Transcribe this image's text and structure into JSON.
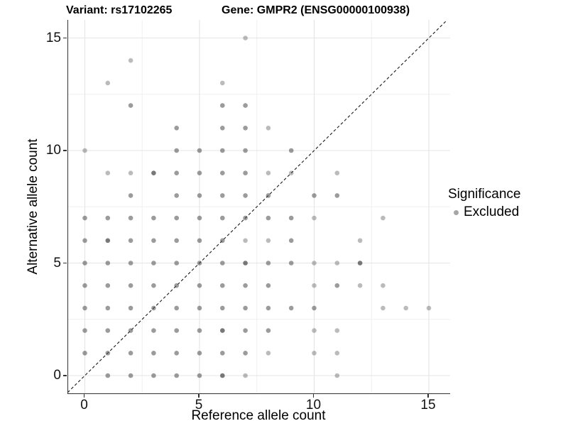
{
  "title_left": "Variant: rs17102265",
  "title_right": "Gene: GMPR2 (ENSG00000100938)",
  "legend": {
    "title": "Significance",
    "items": [
      {
        "label": "Excluded",
        "color": "#4d4d4d",
        "alpha": 0.5
      }
    ]
  },
  "x_axis": {
    "label": "Reference allele count",
    "tick_labels": [
      "0",
      "5",
      "10",
      "15"
    ],
    "tick_values": [
      0,
      5,
      10,
      15
    ],
    "minor_ticks": [
      2.5,
      7.5,
      12.5
    ],
    "range": [
      -0.75,
      15.93
    ]
  },
  "y_axis": {
    "label": "Alternative allele count",
    "tick_labels": [
      "0",
      "5",
      "10",
      "15"
    ],
    "tick_values": [
      0,
      5,
      10,
      15
    ],
    "minor_ticks": [
      2.5,
      7.5,
      12.5
    ],
    "range": [
      -0.77,
      15.8
    ]
  },
  "chart_data": {
    "type": "scatter",
    "title_left": "Variant: rs17102265",
    "title_right": "Gene: GMPR2 (ENSG00000100938)",
    "xlabel": "Reference allele count",
    "ylabel": "Alternative allele count",
    "xlim": [
      -0.75,
      15.93
    ],
    "ylim": [
      -0.77,
      15.8
    ],
    "grid": true,
    "legend_position": "right",
    "identity_line": {
      "style": "dashed",
      "color": "#1a1a1a",
      "from": [
        -0.75,
        -0.75
      ],
      "to": [
        15.8,
        15.8
      ]
    },
    "point_color": "#4d4d4d",
    "alpha_levels": [
      0.38,
      0.56,
      0.76
    ],
    "series": [
      {
        "name": "Excluded",
        "points": [
          [
            7,
            15,
            1
          ],
          [
            2,
            14,
            1
          ],
          [
            1,
            13,
            1
          ],
          [
            6,
            13,
            1
          ],
          [
            2,
            12,
            2
          ],
          [
            6,
            12,
            2
          ],
          [
            7,
            12,
            2
          ],
          [
            4,
            11,
            2
          ],
          [
            6,
            11,
            2
          ],
          [
            7,
            11,
            2
          ],
          [
            8,
            11,
            1
          ],
          [
            0,
            10,
            1
          ],
          [
            4,
            10,
            2
          ],
          [
            5,
            10,
            2
          ],
          [
            6,
            10,
            2
          ],
          [
            7,
            10,
            2
          ],
          [
            9,
            10,
            2
          ],
          [
            1,
            9,
            1
          ],
          [
            2,
            9,
            1
          ],
          [
            3,
            9,
            3
          ],
          [
            4,
            9,
            2
          ],
          [
            5,
            9,
            2
          ],
          [
            6,
            9,
            2
          ],
          [
            7,
            9,
            2
          ],
          [
            8,
            9,
            1
          ],
          [
            9,
            9,
            1
          ],
          [
            11,
            9,
            1
          ],
          [
            2,
            8,
            2
          ],
          [
            4,
            8,
            2
          ],
          [
            5,
            8,
            2
          ],
          [
            6,
            8,
            2
          ],
          [
            7,
            8,
            2
          ],
          [
            8,
            8,
            2
          ],
          [
            10,
            8,
            2
          ],
          [
            11,
            8,
            2
          ],
          [
            0,
            7,
            2
          ],
          [
            1,
            7,
            2
          ],
          [
            2,
            7,
            2
          ],
          [
            3,
            7,
            2
          ],
          [
            4,
            7,
            2
          ],
          [
            5,
            7,
            2
          ],
          [
            6,
            7,
            2
          ],
          [
            7,
            7,
            2
          ],
          [
            8,
            7,
            2
          ],
          [
            9,
            7,
            2
          ],
          [
            10,
            7,
            1
          ],
          [
            13,
            7,
            1
          ],
          [
            0,
            6,
            2
          ],
          [
            1,
            6,
            3
          ],
          [
            2,
            6,
            2
          ],
          [
            3,
            6,
            2
          ],
          [
            4,
            6,
            2
          ],
          [
            5,
            6,
            2
          ],
          [
            6,
            6,
            2
          ],
          [
            7,
            6,
            1
          ],
          [
            8,
            6,
            1
          ],
          [
            9,
            6,
            2
          ],
          [
            12,
            6,
            1
          ],
          [
            0,
            5,
            2
          ],
          [
            1,
            5,
            2
          ],
          [
            2,
            5,
            2
          ],
          [
            3,
            5,
            2
          ],
          [
            4,
            5,
            2
          ],
          [
            5,
            5,
            2
          ],
          [
            6,
            5,
            2
          ],
          [
            7,
            5,
            3
          ],
          [
            8,
            5,
            2
          ],
          [
            9,
            5,
            2
          ],
          [
            10,
            5,
            1
          ],
          [
            11,
            5,
            1
          ],
          [
            12,
            5,
            3
          ],
          [
            0,
            4,
            2
          ],
          [
            1,
            4,
            2
          ],
          [
            2,
            4,
            2
          ],
          [
            3,
            4,
            2
          ],
          [
            4,
            4,
            2
          ],
          [
            5,
            4,
            2
          ],
          [
            6,
            4,
            2
          ],
          [
            7,
            4,
            2
          ],
          [
            8,
            4,
            2
          ],
          [
            10,
            4,
            1
          ],
          [
            11,
            4,
            2
          ],
          [
            12,
            4,
            1
          ],
          [
            13,
            4,
            1
          ],
          [
            0,
            3,
            2
          ],
          [
            1,
            3,
            2
          ],
          [
            2,
            3,
            2
          ],
          [
            3,
            3,
            2
          ],
          [
            4,
            3,
            2
          ],
          [
            5,
            3,
            2
          ],
          [
            6,
            3,
            2
          ],
          [
            7,
            3,
            2
          ],
          [
            8,
            3,
            2
          ],
          [
            9,
            3,
            2
          ],
          [
            10,
            3,
            2
          ],
          [
            13,
            3,
            1
          ],
          [
            14,
            3,
            1
          ],
          [
            15,
            3,
            1
          ],
          [
            0,
            2,
            2
          ],
          [
            1,
            2,
            2
          ],
          [
            2,
            2,
            2
          ],
          [
            3,
            2,
            2
          ],
          [
            4,
            2,
            2
          ],
          [
            5,
            2,
            2
          ],
          [
            6,
            2,
            3
          ],
          [
            7,
            2,
            2
          ],
          [
            8,
            2,
            2
          ],
          [
            10,
            2,
            1
          ],
          [
            11,
            2,
            1
          ],
          [
            0,
            1,
            2
          ],
          [
            1,
            1,
            2
          ],
          [
            2,
            1,
            2
          ],
          [
            3,
            1,
            2
          ],
          [
            4,
            1,
            2
          ],
          [
            5,
            1,
            2
          ],
          [
            6,
            1,
            2
          ],
          [
            7,
            1,
            2
          ],
          [
            8,
            1,
            1
          ],
          [
            10,
            1,
            1
          ],
          [
            11,
            1,
            1
          ],
          [
            1,
            0,
            2
          ],
          [
            2,
            0,
            2
          ],
          [
            3,
            0,
            2
          ],
          [
            4,
            0,
            2
          ],
          [
            5,
            0,
            2
          ],
          [
            6,
            0,
            3
          ],
          [
            7,
            0,
            1
          ],
          [
            11,
            0,
            1
          ]
        ]
      }
    ]
  }
}
